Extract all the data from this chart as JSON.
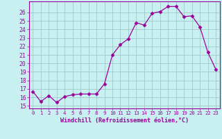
{
  "x": [
    0,
    1,
    2,
    3,
    4,
    5,
    6,
    7,
    8,
    9,
    10,
    11,
    12,
    13,
    14,
    15,
    16,
    17,
    18,
    19,
    20,
    21,
    22,
    23
  ],
  "y": [
    16.7,
    15.5,
    16.2,
    15.4,
    16.1,
    16.3,
    16.4,
    16.4,
    16.4,
    17.6,
    21.0,
    22.2,
    22.9,
    24.8,
    24.5,
    25.9,
    26.1,
    26.7,
    26.7,
    25.5,
    25.6,
    24.3,
    21.3,
    19.3
  ],
  "line_color": "#9b009b",
  "marker": "D",
  "marker_size": 2.5,
  "bg_color": "#c8f0f0",
  "grid_color": "#a0c8c8",
  "tick_color": "#9b009b",
  "spine_color": "#9b009b",
  "xlabel": "Windchill (Refroidissement éolien,°C)",
  "ylabel_ticks": [
    15,
    16,
    17,
    18,
    19,
    20,
    21,
    22,
    23,
    24,
    25,
    26
  ],
  "ylim": [
    14.7,
    27.3
  ],
  "xlim": [
    -0.5,
    23.5
  ],
  "xticks": [
    0,
    1,
    2,
    3,
    4,
    5,
    6,
    7,
    8,
    9,
    10,
    11,
    12,
    13,
    14,
    15,
    16,
    17,
    18,
    19,
    20,
    21,
    22,
    23
  ],
  "xlabel_fontsize": 6.0,
  "xtick_fontsize": 5.2,
  "ytick_fontsize": 5.8
}
